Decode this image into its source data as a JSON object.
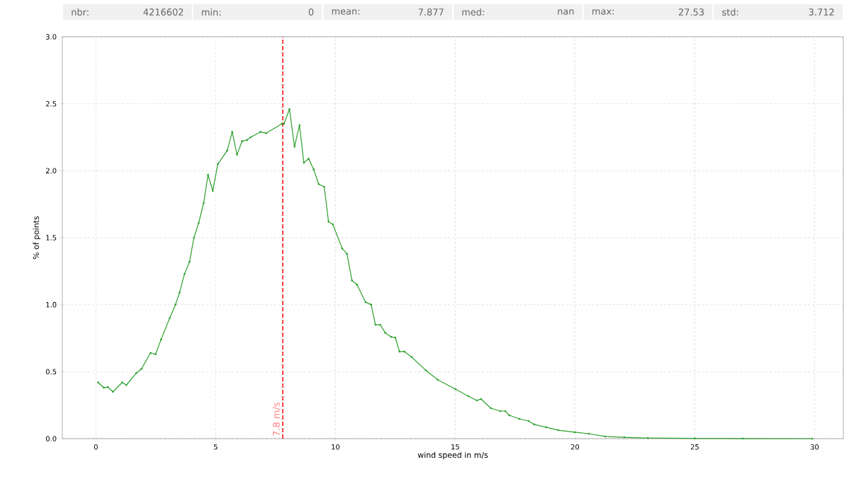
{
  "chart_data": {
    "type": "line",
    "xlabel": "wind speed in m/s",
    "ylabel": "% of points",
    "annotations": [
      "nbr:",
      "4216602",
      "min:",
      "0",
      "mean:",
      "7.877",
      "med:",
      "nan",
      "max:",
      "27.53",
      "std:",
      "3.712"
    ],
    "x": [
      0.09,
      0.33,
      0.5,
      0.71,
      1.1,
      1.27,
      1.69,
      1.9,
      2.28,
      2.49,
      2.72,
      3.08,
      3.32,
      3.49,
      3.7,
      3.91,
      4.09,
      4.29,
      4.5,
      4.68,
      4.88,
      5.09,
      5.48,
      5.69,
      5.89,
      6.1,
      6.31,
      6.46,
      6.87,
      7.11,
      7.76,
      7.85,
      8.08,
      8.29,
      8.5,
      8.68,
      8.88,
      9.09,
      9.3,
      9.53,
      9.71,
      9.89,
      10.28,
      10.48,
      10.69,
      10.9,
      11.25,
      11.49,
      11.67,
      11.87,
      12.08,
      12.32,
      12.5,
      12.67,
      12.88,
      13.18,
      13.77,
      14.27,
      15.01,
      15.55,
      15.9,
      16.08,
      16.49,
      16.88,
      17.09,
      17.26,
      17.68,
      18.06,
      18.3,
      18.8,
      19.31,
      19.99,
      20.58,
      21.26,
      22.06,
      23.04,
      25.0,
      27.0,
      29.9
    ],
    "series": [
      {
        "color": "#2ca02c",
        "values": [
          0.42,
          0.38,
          0.385,
          0.35,
          0.42,
          0.4,
          0.49,
          0.52,
          0.64,
          0.63,
          0.74,
          0.9,
          1.0,
          1.09,
          1.23,
          1.32,
          1.5,
          1.61,
          1.76,
          1.97,
          1.85,
          2.05,
          2.15,
          2.29,
          2.12,
          2.22,
          2.23,
          2.25,
          2.29,
          2.28,
          2.35,
          2.35,
          2.46,
          2.18,
          2.34,
          2.06,
          2.09,
          2.01,
          1.9,
          1.88,
          1.62,
          1.6,
          1.42,
          1.38,
          1.18,
          1.15,
          1.02,
          1.0,
          0.85,
          0.85,
          0.79,
          0.76,
          0.755,
          0.65,
          0.65,
          0.61,
          0.51,
          0.44,
          0.37,
          0.317,
          0.285,
          0.296,
          0.227,
          0.206,
          0.206,
          0.174,
          0.148,
          0.132,
          0.106,
          0.085,
          0.063,
          0.048,
          0.037,
          0.016,
          0.01,
          0.005,
          0.002,
          0.001,
          0.0
        ]
      }
    ],
    "xlim": [
      -1.4,
      31.2
    ],
    "ylim": [
      0,
      3
    ],
    "xticks": [
      0,
      5,
      10,
      15,
      20,
      25,
      30
    ],
    "yticks": [
      {
        "value": 0,
        "label": "0.0"
      },
      {
        "value": 0.5,
        "label": "0.5"
      },
      {
        "value": 1,
        "label": "1.0"
      },
      {
        "value": 1.5,
        "label": "1.5"
      },
      {
        "value": 2,
        "label": "2.0"
      },
      {
        "value": 2.5,
        "label": "2.5"
      },
      {
        "value": 3,
        "label": "3.0"
      }
    ],
    "ref_lines": [
      {
        "axis": "x",
        "value": 7.8,
        "label": "7.8 m/s",
        "color": "#ff0000",
        "line_style": "dashed"
      }
    ],
    "grid": true,
    "marker": "circle",
    "line_style": "solid"
  }
}
